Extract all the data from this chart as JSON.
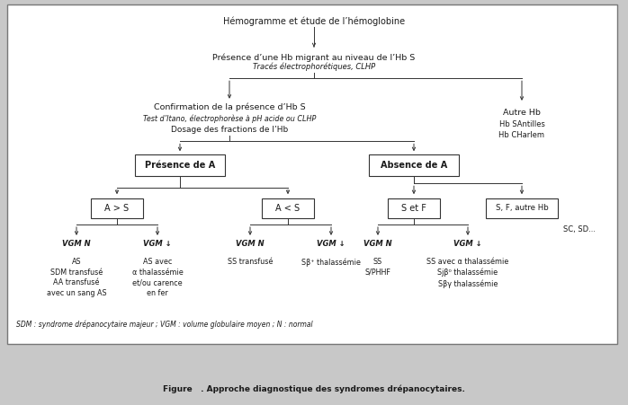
{
  "title": "Figure   . Approche diagnostique des syndromes drépanocytaires.",
  "bg_outer": "#c8c8c8",
  "bg_inner": "#ffffff",
  "text_color": "#1a1a1a",
  "node1": "Hémogramme et étude de l’hémoglobine",
  "node2_line1": "Présence d’une Hb migrant au niveau de l’Hb S",
  "node2_line2": "Tracés électrophorétiques, CLHP",
  "node3_line1": "Confirmation de la présence d’Hb S",
  "node3_line2": "Test d’Itano, électrophorèse à pH acide ou CLHP",
  "node3_line3": "Dosage des fractions de l’Hb",
  "node4": "Autre Hb",
  "node4_sub": "Hb SAntilles\nHb CHarlem",
  "box_presence": "Présence de A",
  "box_absence": "Absence de A",
  "box_ags": "A > S",
  "box_als": "A < S",
  "box_setf": "S et F",
  "box_sfautre": "S, F, autre Hb",
  "label_sc": "SC, SD...",
  "vgm_n1": "VGM N",
  "vgm_d1": "VGM ↓",
  "vgm_n2": "VGM N",
  "vgm_d2": "VGM ↓",
  "vgm_n3": "VGM N",
  "vgm_d3": "VGM ↓",
  "leaf1": "AS\nSDM transfusé\nAA transfusé\navec un sang AS",
  "leaf2": "AS avec\nα thalassémie\net/ou carence\nen fer",
  "leaf3": "SS transfusé",
  "leaf4": "Sβ⁺ thalassémie",
  "leaf5": "SS\nS/PHHF",
  "leaf6": "SS avec α thalassémie\nSjβ⁰ thalassémie\nSβγ thalassémie",
  "footnote": "SDM : syndrome drépanocytaire majeur ; VGM : volume globulaire moyen ; N : normal"
}
